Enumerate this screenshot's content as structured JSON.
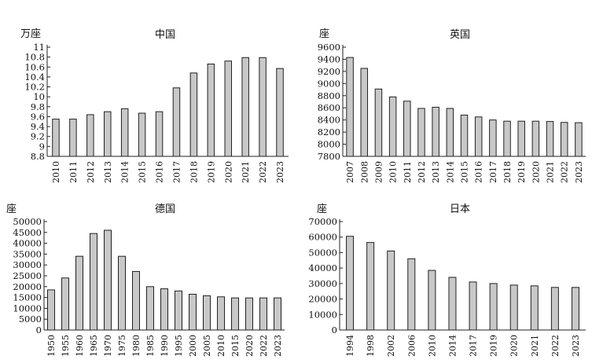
{
  "chart_data": [
    {
      "type": "bar",
      "title": "中国",
      "unit": "万座",
      "categories": [
        "2010",
        "2011",
        "2012",
        "2013",
        "2014",
        "2015",
        "2016",
        "2017",
        "2018",
        "2019",
        "2020",
        "2021",
        "2022",
        "2023"
      ],
      "values": [
        9.55,
        9.55,
        9.64,
        9.7,
        9.76,
        9.67,
        9.7,
        10.18,
        10.48,
        10.66,
        10.72,
        10.79,
        10.79,
        10.57
      ],
      "ylim": [
        8.8,
        11
      ],
      "yticks": [
        "8.8",
        "9",
        "9.2",
        "9.4",
        "9.6",
        "9.8",
        "10",
        "10.2",
        "10.4",
        "10.6",
        "10.8",
        "11"
      ],
      "ytick_values": [
        8.8,
        9,
        9.2,
        9.4,
        9.6,
        9.8,
        10,
        10.2,
        10.4,
        10.6,
        10.8,
        11
      ]
    },
    {
      "type": "bar",
      "title": "英国",
      "unit": "座",
      "categories": [
        "2007",
        "2008",
        "2009",
        "2010",
        "2011",
        "2012",
        "2013",
        "2014",
        "2015",
        "2016",
        "2017",
        "2018",
        "2019",
        "2020",
        "2021",
        "2022",
        "2023"
      ],
      "values": [
        9430,
        9250,
        8910,
        8780,
        8710,
        8590,
        8610,
        8590,
        8480,
        8450,
        8400,
        8380,
        8380,
        8380,
        8375,
        8360,
        8355
      ],
      "ylim": [
        7800,
        9600
      ],
      "yticks": [
        "7800",
        "8000",
        "8200",
        "8400",
        "8600",
        "8800",
        "9000",
        "9200",
        "9400",
        "9600"
      ],
      "ytick_values": [
        7800,
        8000,
        8200,
        8400,
        8600,
        8800,
        9000,
        9200,
        9400,
        9600
      ]
    },
    {
      "type": "bar",
      "title": "德国",
      "unit": "座",
      "categories": [
        "1950",
        "1955",
        "1960",
        "1965",
        "1970",
        "1975",
        "1980",
        "1985",
        "1990",
        "1995",
        "2000",
        "2005",
        "2010",
        "2015",
        "2020",
        "2022",
        "2023"
      ],
      "values": [
        18500,
        24000,
        34000,
        44500,
        46000,
        34000,
        27000,
        20000,
        19000,
        18000,
        16500,
        15800,
        15300,
        14800,
        14800,
        14800,
        14800
      ],
      "ylim": [
        0,
        50000
      ],
      "yticks": [
        "0",
        "5000",
        "10000",
        "15000",
        "20000",
        "25000",
        "30000",
        "35000",
        "40000",
        "45000",
        "50000"
      ],
      "ytick_values": [
        0,
        5000,
        10000,
        15000,
        20000,
        25000,
        30000,
        35000,
        40000,
        45000,
        50000
      ]
    },
    {
      "type": "bar",
      "title": "日本",
      "unit": "座",
      "categories": [
        "1994",
        "1998",
        "2002",
        "2006",
        "2010",
        "2014",
        "2017",
        "2019",
        "2020",
        "2021",
        "2022",
        "2023"
      ],
      "values": [
        60500,
        56500,
        51000,
        46000,
        38500,
        34000,
        31000,
        30000,
        29000,
        28500,
        27500,
        27500
      ],
      "ylim": [
        0,
        70000
      ],
      "yticks": [
        "0",
        "10000",
        "20000",
        "30000",
        "40000",
        "50000",
        "60000",
        "70000"
      ],
      "ytick_values": [
        0,
        10000,
        20000,
        30000,
        40000,
        50000,
        60000,
        70000
      ]
    }
  ],
  "style": {
    "bar_fill": "#c8c8c8",
    "bar_stroke": "#222222",
    "axis_color": "#222222"
  }
}
